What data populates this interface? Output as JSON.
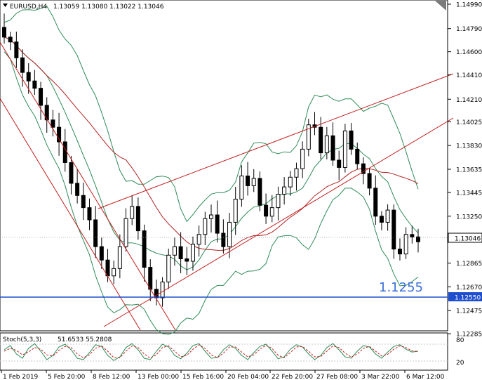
{
  "header": {
    "symbol": "EURUSD,H4",
    "ohlc": "1.13059 1.13080 1.13022 1.13046"
  },
  "chart_data": {
    "type": "candlestick",
    "symbol": "EURUSD",
    "timeframe": "H4",
    "price_axis": {
      "ticks": [
        "1.14990",
        "1.14790",
        "1.14600",
        "1.14410",
        "1.14210",
        "1.14025",
        "1.13830",
        "1.13635",
        "1.13445",
        "1.13250",
        "1.13060",
        "1.12865",
        "1.12670",
        "1.12475",
        "1.12285"
      ],
      "range": [
        1.1228,
        1.1499
      ]
    },
    "time_axis": {
      "ticks": [
        "1 Feb 2019",
        "5 Feb 20:00",
        "8 Feb 12:00",
        "13 Feb 00:00",
        "15 Feb 16:00",
        "20 Feb 04:00",
        "22 Feb 20:00",
        "27 Feb 08:00",
        "3 Mar 22:00",
        "6 Mar 12:00"
      ]
    },
    "current_price": "1.13046",
    "horizontal_line": {
      "label": "1.12550",
      "value": 1.1255,
      "color": "#1f4fcf"
    },
    "annotation": "1.1255",
    "candle_closes": [
      1.1472,
      1.1468,
      1.1455,
      1.1443,
      1.1436,
      1.143,
      1.1416,
      1.1404,
      1.1398,
      1.1386,
      1.1369,
      1.1352,
      1.1342,
      1.1332,
      1.1322,
      1.13,
      1.1289,
      1.1276,
      1.1282,
      1.13,
      1.1323,
      1.1333,
      1.1313,
      1.1283,
      1.1265,
      1.1258,
      1.1271,
      1.1293,
      1.13,
      1.129,
      1.1288,
      1.1302,
      1.131,
      1.1323,
      1.1326,
      1.1311,
      1.13,
      1.132,
      1.1339,
      1.1358,
      1.135,
      1.1356,
      1.1334,
      1.1325,
      1.1332,
      1.1343,
      1.1349,
      1.1357,
      1.1364,
      1.138,
      1.14,
      1.1398,
      1.1377,
      1.1391,
      1.1371,
      1.1365,
      1.1395,
      1.138,
      1.1368,
      1.136,
      1.1348,
      1.1325,
      1.132,
      1.133,
      1.1298,
      1.1294,
      1.131,
      1.1308,
      1.1304
    ],
    "indicator": {
      "name": "Stoch(5,3,3)",
      "values": "51.6533 55.2808",
      "ticks": [
        "80",
        "20"
      ],
      "main": [
        60,
        75,
        45,
        30,
        65,
        82,
        55,
        25,
        40,
        70,
        80,
        60,
        30,
        25,
        50,
        78,
        72,
        40,
        22,
        35,
        68,
        82,
        60,
        30,
        25,
        55,
        80,
        70,
        40,
        28,
        48,
        75,
        82,
        55,
        30,
        32,
        60,
        78,
        65,
        40,
        25,
        50,
        72,
        80,
        55,
        28,
        35,
        62,
        78,
        70,
        45,
        25,
        40,
        68,
        82,
        60,
        35,
        30,
        55,
        75,
        70,
        45,
        30,
        52,
        72,
        78,
        62,
        52,
        55
      ],
      "signal": [
        55,
        65,
        58,
        42,
        52,
        68,
        62,
        42,
        38,
        58,
        72,
        68,
        45,
        32,
        42,
        65,
        74,
        55,
        32,
        32,
        55,
        74,
        68,
        45,
        30,
        42,
        68,
        74,
        55,
        35,
        40,
        62,
        78,
        65,
        42,
        32,
        48,
        70,
        70,
        52,
        35,
        42,
        62,
        76,
        65,
        40,
        32,
        50,
        70,
        72,
        55,
        35,
        36,
        55,
        74,
        68,
        48,
        34,
        45,
        65,
        72,
        55,
        38,
        44,
        62,
        74,
        68,
        56,
        54
      ]
    },
    "colors": {
      "grid": "#c8c8c8",
      "bollinger": "#2e8b57",
      "moving_average": "#b22222",
      "trend_lines": "#c21e1e",
      "price_line": "#1f4fcf"
    }
  }
}
